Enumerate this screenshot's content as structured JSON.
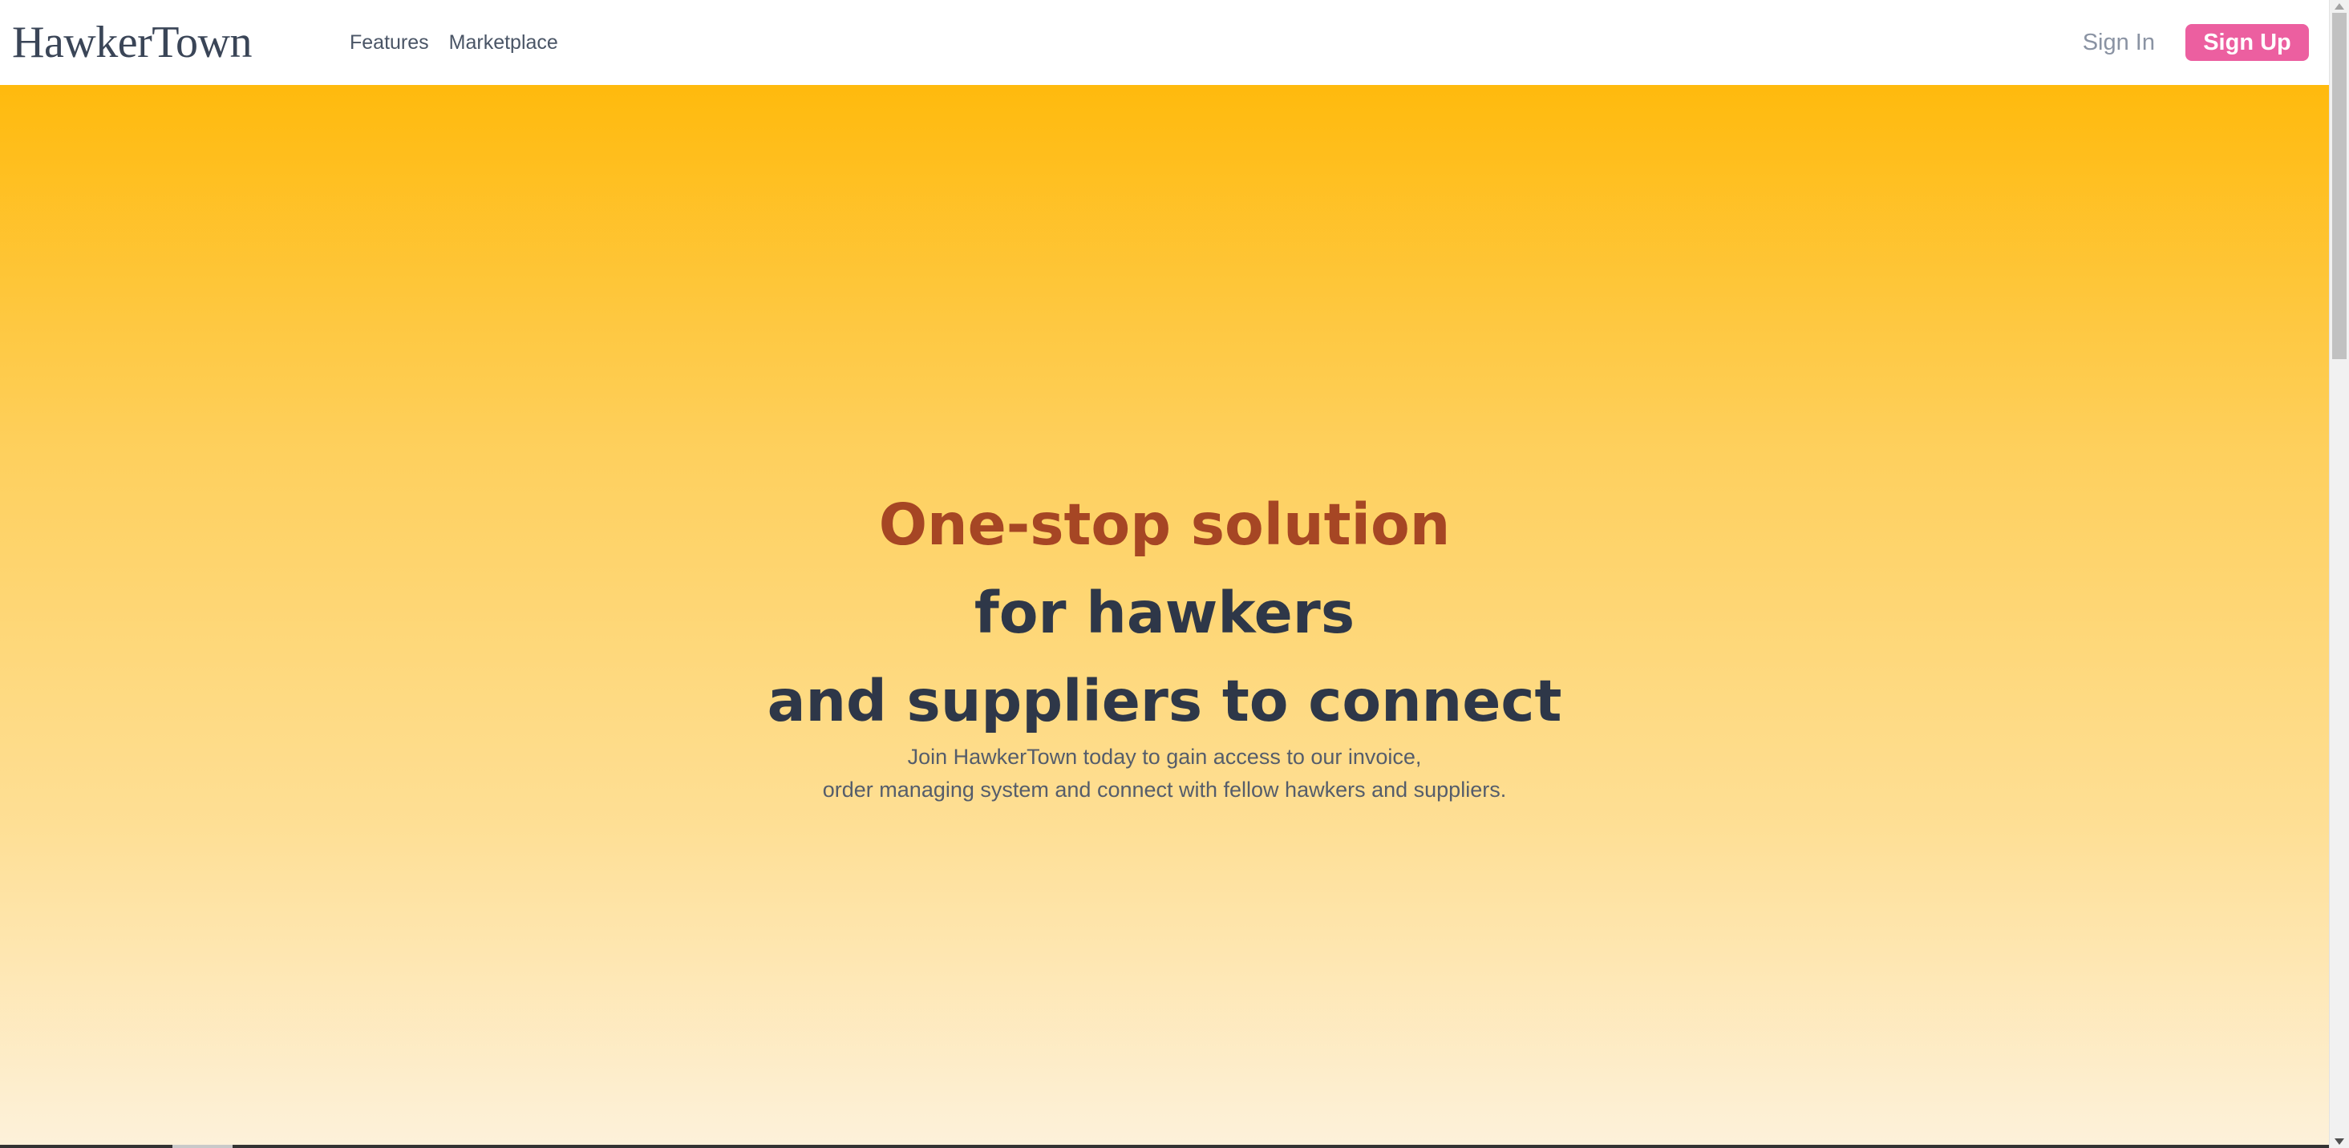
{
  "navbar": {
    "brand": "HawkerTown",
    "links": [
      "Features",
      "Marketplace"
    ],
    "sign_in": "Sign In",
    "sign_up": "Sign Up"
  },
  "hero": {
    "title_lines": [
      "One-stop solution",
      "for hawkers",
      "and suppliers to connect"
    ],
    "subtitle_lines": [
      "Join HawkerTown today to gain access to our invoice,",
      "order managing system and connect with fellow hawkers and suppliers."
    ]
  },
  "colors": {
    "accent": "#ec5fa0",
    "title_highlight": "#a64624",
    "title_dark": "#2e3748",
    "hero_gradient_top": "#ffba0d",
    "hero_gradient_bottom": "#fdf1da"
  }
}
